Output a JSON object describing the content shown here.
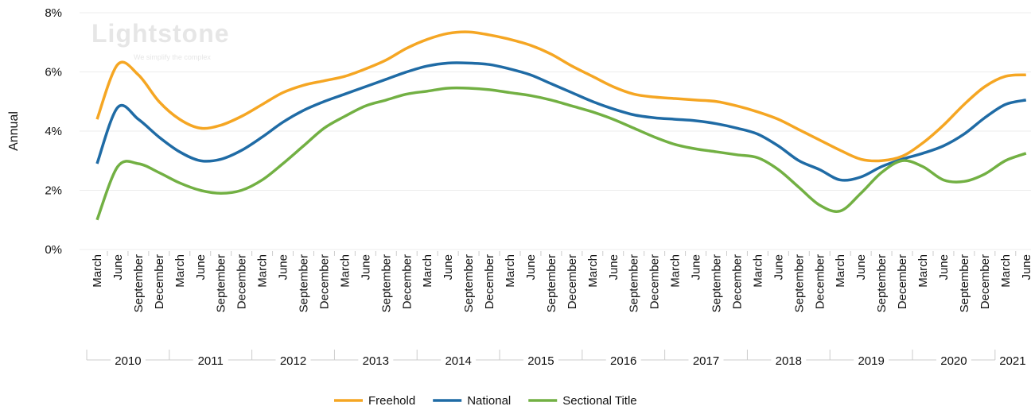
{
  "chart_data": {
    "type": "line",
    "y_label": "Annual",
    "watermark": {
      "brand": "Lightstone",
      "tagline": "We simplify the complex"
    },
    "categories": [
      "March",
      "June",
      "September",
      "December",
      "March",
      "June",
      "September",
      "December",
      "March",
      "June",
      "September",
      "December",
      "March",
      "June",
      "September",
      "December",
      "March",
      "June",
      "September",
      "December",
      "March",
      "June",
      "September",
      "December",
      "March",
      "June",
      "September",
      "December",
      "March",
      "June",
      "September",
      "December",
      "March",
      "June",
      "September",
      "December",
      "March",
      "June",
      "September",
      "December",
      "March",
      "June",
      "September",
      "December",
      "March",
      "June"
    ],
    "years": [
      "2010",
      "2011",
      "2012",
      "2013",
      "2014",
      "2015",
      "2016",
      "2017",
      "2018",
      "2019",
      "2020",
      "2021"
    ],
    "ylim": [
      0,
      8
    ],
    "yticks": [
      {
        "value": 0,
        "label": "0%"
      },
      {
        "value": 2,
        "label": "2%"
      },
      {
        "value": 4,
        "label": "4%"
      },
      {
        "value": 6,
        "label": "6%"
      },
      {
        "value": 8,
        "label": "8%"
      }
    ],
    "grid": true,
    "legend": "bottom",
    "series": [
      {
        "name": "Freehold",
        "color": "#f5a623",
        "values": [
          4.4,
          6.25,
          5.9,
          5.0,
          4.4,
          4.1,
          4.2,
          4.5,
          4.9,
          5.3,
          5.55,
          5.7,
          5.85,
          6.1,
          6.4,
          6.8,
          7.1,
          7.3,
          7.35,
          7.25,
          7.1,
          6.9,
          6.6,
          6.2,
          5.85,
          5.5,
          5.25,
          5.15,
          5.1,
          5.05,
          5.0,
          4.85,
          4.65,
          4.4,
          4.05,
          3.7,
          3.35,
          3.05,
          3.0,
          3.15,
          3.6,
          4.2,
          4.9,
          5.5,
          5.85,
          5.9
        ]
      },
      {
        "name": "National",
        "color": "#1f6ba5",
        "values": [
          2.9,
          4.8,
          4.4,
          3.8,
          3.3,
          3.0,
          3.05,
          3.35,
          3.8,
          4.3,
          4.7,
          5.0,
          5.25,
          5.5,
          5.75,
          6.0,
          6.2,
          6.3,
          6.3,
          6.25,
          6.1,
          5.9,
          5.6,
          5.3,
          5.0,
          4.75,
          4.55,
          4.45,
          4.4,
          4.35,
          4.25,
          4.1,
          3.9,
          3.5,
          3.0,
          2.7,
          2.35,
          2.45,
          2.8,
          3.05,
          3.25,
          3.5,
          3.9,
          4.45,
          4.9,
          5.05
        ]
      },
      {
        "name": "Sectional Title",
        "color": "#72b043",
        "values": [
          1.0,
          2.8,
          2.9,
          2.6,
          2.25,
          2.0,
          1.9,
          2.0,
          2.35,
          2.9,
          3.5,
          4.1,
          4.5,
          4.85,
          5.05,
          5.25,
          5.35,
          5.45,
          5.45,
          5.4,
          5.3,
          5.2,
          5.05,
          4.85,
          4.65,
          4.4,
          4.1,
          3.8,
          3.55,
          3.4,
          3.3,
          3.2,
          3.1,
          2.7,
          2.1,
          1.5,
          1.3,
          1.9,
          2.6,
          3.0,
          2.8,
          2.35,
          2.3,
          2.55,
          3.0,
          3.25
        ]
      }
    ]
  }
}
